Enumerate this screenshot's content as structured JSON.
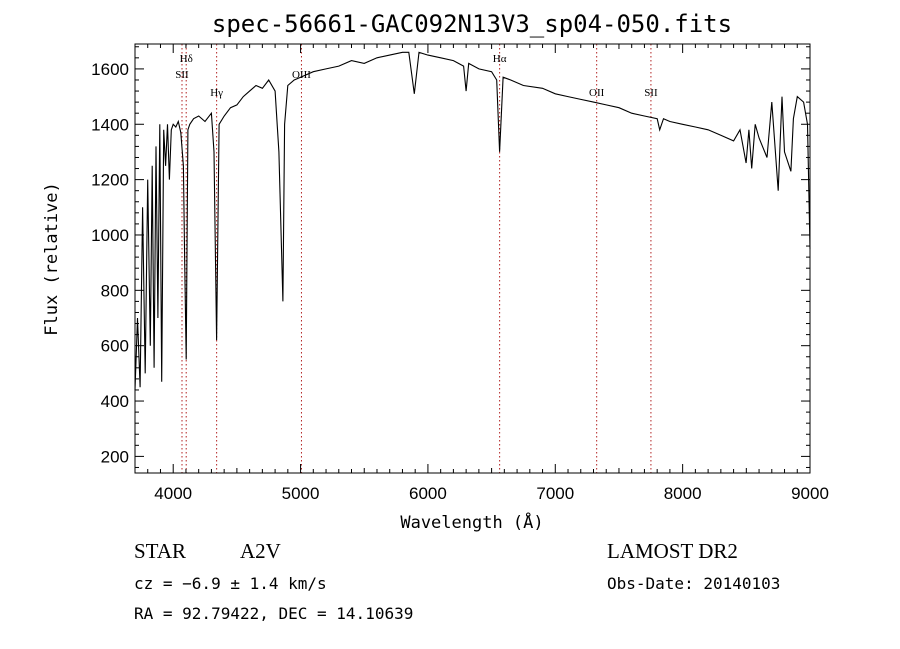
{
  "chart_data": {
    "type": "line",
    "title": "spec-56661-GAC092N13V3_sp04-050.fits",
    "xlabel": "Wavelength (Å)",
    "ylabel": "Flux (relative)",
    "xlim": [
      3700,
      9000
    ],
    "ylim": [
      140,
      1690
    ],
    "x_ticks": [
      4000,
      5000,
      6000,
      7000,
      8000,
      9000
    ],
    "y_ticks": [
      200,
      400,
      600,
      800,
      1000,
      1200,
      1400,
      1600
    ],
    "line_color": "#000000",
    "marker_color": "#b22222",
    "grid": false,
    "series": [
      {
        "x": [
          3700,
          3720,
          3740,
          3760,
          3780,
          3800,
          3820,
          3835,
          3850,
          3865,
          3880,
          3895,
          3910,
          3925,
          3940,
          3955,
          3970,
          3985,
          4000,
          4020,
          4040,
          4060,
          4080,
          4090,
          4102,
          4115,
          4130,
          4160,
          4200,
          4250,
          4300,
          4320,
          4341,
          4360,
          4400,
          4450,
          4500,
          4550,
          4600,
          4650,
          4700,
          4750,
          4800,
          4830,
          4850,
          4861,
          4875,
          4900,
          4950,
          5000,
          5100,
          5200,
          5300,
          5400,
          5500,
          5600,
          5700,
          5800,
          5850,
          5893,
          5930,
          6000,
          6100,
          6200,
          6280,
          6300,
          6320,
          6400,
          6500,
          6540,
          6563,
          6590,
          6650,
          6750,
          6900,
          7000,
          7100,
          7200,
          7300,
          7400,
          7500,
          7600,
          7700,
          7800,
          7820,
          7850,
          7900,
          8000,
          8100,
          8200,
          8300,
          8400,
          8450,
          8498,
          8520,
          8542,
          8570,
          8600,
          8662,
          8700,
          8750,
          8780,
          8800,
          8850,
          8870,
          8900,
          8950,
          8980,
          9000
        ],
        "y": [
          440,
          700,
          450,
          1100,
          500,
          1200,
          600,
          1250,
          520,
          1320,
          700,
          1400,
          470,
          1380,
          1250,
          1400,
          1200,
          1380,
          1400,
          1390,
          1410,
          1370,
          1250,
          900,
          550,
          1380,
          1400,
          1420,
          1430,
          1410,
          1440,
          1300,
          620,
          1400,
          1430,
          1460,
          1470,
          1500,
          1520,
          1540,
          1530,
          1560,
          1520,
          1300,
          950,
          760,
          1400,
          1540,
          1560,
          1570,
          1590,
          1600,
          1610,
          1630,
          1620,
          1640,
          1650,
          1660,
          1660,
          1510,
          1660,
          1650,
          1640,
          1630,
          1610,
          1520,
          1620,
          1600,
          1590,
          1560,
          1300,
          1570,
          1560,
          1540,
          1530,
          1510,
          1500,
          1490,
          1480,
          1470,
          1460,
          1440,
          1430,
          1420,
          1380,
          1420,
          1410,
          1400,
          1390,
          1380,
          1360,
          1340,
          1380,
          1260,
          1380,
          1240,
          1400,
          1350,
          1280,
          1480,
          1160,
          1500,
          1300,
          1230,
          1420,
          1500,
          1480,
          1400,
          950
        ]
      }
    ],
    "line_markers": [
      {
        "label": "Hδ",
        "wavelength": 4102,
        "label_row": 1
      },
      {
        "label": "SII",
        "wavelength": 4069,
        "label_row": 2
      },
      {
        "label": "Hγ",
        "wavelength": 4341,
        "label_row": 3
      },
      {
        "label": "OIII",
        "wavelength": 5007,
        "label_row": 2
      },
      {
        "label": "Hα",
        "wavelength": 6563,
        "label_row": 1
      },
      {
        "label": "OII",
        "wavelength": 7325,
        "label_row": 3
      },
      {
        "label": "SII",
        "wavelength": 7751,
        "label_row": 3
      }
    ]
  },
  "info": {
    "class": "STAR",
    "subclass": "A2V",
    "survey": "LAMOST DR2",
    "cz": "cz = −6.9 ± 1.4 km/s",
    "obs_date": "Obs-Date: 20140103",
    "coords": "RA =  92.79422, DEC =  14.10639"
  }
}
